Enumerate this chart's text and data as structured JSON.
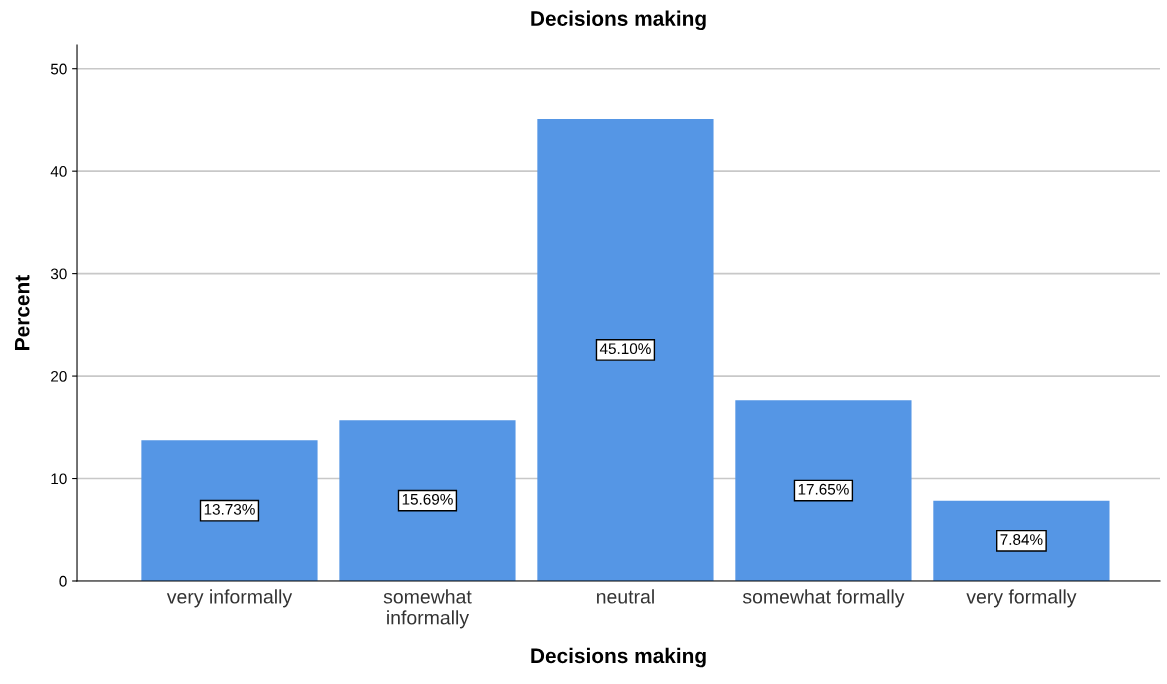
{
  "chart_data": {
    "type": "bar",
    "title": "Decisions making",
    "xlabel": "Decisions making",
    "ylabel": "Percent",
    "categories": [
      "very informally",
      "somewhat\ninformally",
      "neutral",
      "somewhat formally",
      "very formally"
    ],
    "values": [
      13.73,
      15.69,
      45.1,
      17.65,
      7.84
    ],
    "value_labels": [
      "13.73%",
      "15.69%",
      "45.10%",
      "17.65%",
      "7.84%"
    ],
    "color": "#5596e5",
    "ylim": [
      0,
      52.3
    ],
    "yticks": [
      0,
      10,
      20,
      30,
      40,
      50
    ],
    "grid": "y",
    "legend": false
  }
}
